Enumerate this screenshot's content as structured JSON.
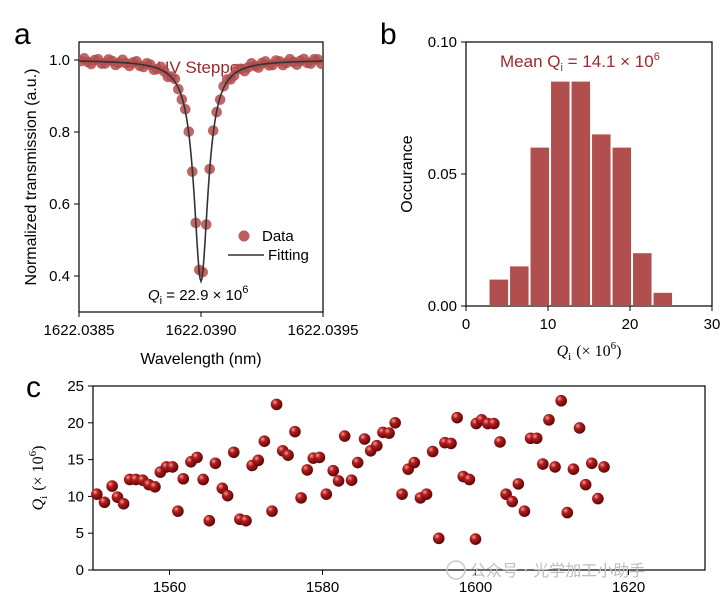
{
  "colors": {
    "accent": "#9b2a2a",
    "bar": "#b14e4e",
    "dot": "#b24c4c",
    "ball": "#8e1212",
    "fit": "#333333"
  },
  "watermark": "公众号 · 光学加工小助手",
  "chart_data": [
    {
      "panel": "a",
      "type": "scatter",
      "title": "UV Stepper",
      "xlabel": "Wavelength (nm)",
      "ylabel": "Normalized transmission (a.u.)",
      "xlim": [
        1622.0385,
        1622.0395
      ],
      "ylim": [
        0.3,
        1.05
      ],
      "xticks": [
        "1622.0385",
        "1622.0390",
        "1622.0395"
      ],
      "yticks": [
        "0.4",
        "0.6",
        "0.8",
        "1.0"
      ],
      "legend": {
        "data": "Data",
        "fit": "Fitting"
      },
      "annotation": {
        "prefix": "Q",
        "sub": "i",
        "text": " = 22.9 × 10",
        "sup": "6"
      },
      "lorentz": {
        "center": 1622.039,
        "fwhm": 7.05e-05,
        "depth": 0.615
      },
      "series": [
        {
          "name": "Data",
          "n": 70
        },
        {
          "name": "Fitting"
        }
      ]
    },
    {
      "panel": "b",
      "type": "bar",
      "xlabel": "Q",
      "xlabel_sub": "i",
      "xlabel_unit": "(× 10",
      "xlabel_sup": "6",
      "ylabel": "Occurance",
      "xlim": [
        0,
        30
      ],
      "ylim": [
        0,
        0.1
      ],
      "xticks": [
        "0",
        "10",
        "20",
        "30"
      ],
      "yticks": [
        "0.00",
        "0.05",
        "0.10"
      ],
      "annotation": {
        "prefix": "Mean Q",
        "sub": "i",
        "text": " = 14.1 × 10",
        "sup": "6"
      },
      "bins": [
        4,
        6.5,
        9,
        11.5,
        14,
        16.5,
        19,
        21.5,
        24
      ],
      "values": [
        0.01,
        0.015,
        0.06,
        0.085,
        0.085,
        0.065,
        0.06,
        0.02,
        0.005
      ]
    },
    {
      "panel": "c",
      "type": "scatter",
      "ylabel": "Q",
      "ylabel_sub": "i",
      "ylabel_unit": "(× 10",
      "ylabel_sup": "6",
      "xlim": [
        1550,
        1630
      ],
      "ylim": [
        0,
        25
      ],
      "xticks": [
        "1560",
        "1580",
        "1600",
        "1620"
      ],
      "yticks": [
        "0",
        "5",
        "10",
        "15",
        "20",
        "25"
      ],
      "points": [
        [
          1550.5,
          10.3
        ],
        [
          1551.5,
          9.2
        ],
        [
          1552.5,
          11.4
        ],
        [
          1553.2,
          9.9
        ],
        [
          1554.0,
          9.0
        ],
        [
          1554.8,
          12.3
        ],
        [
          1555.6,
          12.3
        ],
        [
          1556.5,
          12.2
        ],
        [
          1557.3,
          11.6
        ],
        [
          1558.1,
          11.3
        ],
        [
          1558.8,
          13.3
        ],
        [
          1559.6,
          14.0
        ],
        [
          1560.4,
          14.0
        ],
        [
          1561.1,
          8.0
        ],
        [
          1561.8,
          12.4
        ],
        [
          1562.8,
          14.7
        ],
        [
          1563.6,
          15.3
        ],
        [
          1564.4,
          12.3
        ],
        [
          1565.2,
          6.7
        ],
        [
          1566.0,
          14.5
        ],
        [
          1566.9,
          11.1
        ],
        [
          1567.6,
          10.1
        ],
        [
          1568.4,
          16.0
        ],
        [
          1569.2,
          6.9
        ],
        [
          1570.0,
          6.7
        ],
        [
          1570.8,
          14.2
        ],
        [
          1571.6,
          14.9
        ],
        [
          1572.4,
          17.5
        ],
        [
          1573.4,
          8.0
        ],
        [
          1574.0,
          22.5
        ],
        [
          1574.8,
          16.2
        ],
        [
          1575.5,
          15.6
        ],
        [
          1576.4,
          18.8
        ],
        [
          1577.2,
          9.8
        ],
        [
          1578.0,
          13.6
        ],
        [
          1578.8,
          15.2
        ],
        [
          1579.6,
          15.3
        ],
        [
          1580.5,
          10.3
        ],
        [
          1581.4,
          13.5
        ],
        [
          1582.1,
          12.1
        ],
        [
          1582.9,
          18.2
        ],
        [
          1583.8,
          12.2
        ],
        [
          1584.6,
          14.6
        ],
        [
          1585.5,
          17.8
        ],
        [
          1586.3,
          16.2
        ],
        [
          1587.1,
          16.9
        ],
        [
          1587.9,
          18.7
        ],
        [
          1588.7,
          18.6
        ],
        [
          1589.5,
          20.0
        ],
        [
          1590.4,
          10.3
        ],
        [
          1591.2,
          13.7
        ],
        [
          1592.0,
          14.6
        ],
        [
          1592.8,
          9.8
        ],
        [
          1593.6,
          10.3
        ],
        [
          1594.4,
          16.1
        ],
        [
          1595.2,
          4.3
        ],
        [
          1596.0,
          17.3
        ],
        [
          1596.8,
          17.2
        ],
        [
          1597.6,
          20.7
        ],
        [
          1598.4,
          12.7
        ],
        [
          1599.2,
          12.3
        ],
        [
          1600.0,
          4.2
        ],
        [
          1600.1,
          19.9
        ],
        [
          1600.8,
          20.4
        ],
        [
          1601.6,
          19.9
        ],
        [
          1602.4,
          19.9
        ],
        [
          1603.2,
          17.4
        ],
        [
          1604.0,
          10.3
        ],
        [
          1604.8,
          9.3
        ],
        [
          1605.6,
          11.7
        ],
        [
          1606.4,
          8.0
        ],
        [
          1607.2,
          17.9
        ],
        [
          1608.0,
          17.9
        ],
        [
          1608.8,
          14.4
        ],
        [
          1609.6,
          20.4
        ],
        [
          1610.4,
          14.0
        ],
        [
          1611.2,
          23.0
        ],
        [
          1612.0,
          7.8
        ],
        [
          1612.8,
          13.7
        ],
        [
          1613.6,
          19.3
        ],
        [
          1614.4,
          11.6
        ],
        [
          1615.2,
          14.5
        ],
        [
          1616.0,
          9.7
        ],
        [
          1616.8,
          14.0
        ]
      ]
    }
  ]
}
